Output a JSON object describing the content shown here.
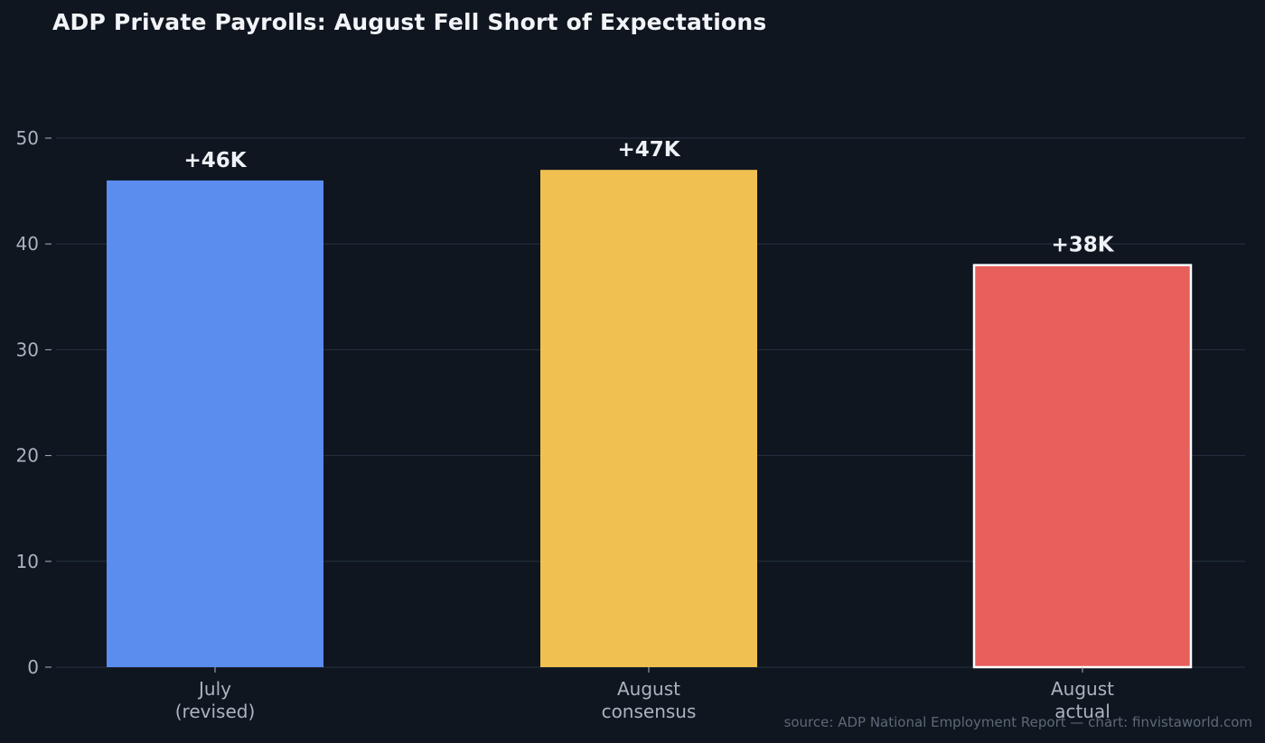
{
  "chart_data": {
    "type": "bar",
    "title": "ADP Private Payrolls: August Fell Short of Expectations",
    "categories": [
      "July\n(revised)",
      "August\nconsensus",
      "August\nactual"
    ],
    "values": [
      46,
      47,
      38
    ],
    "data_labels": [
      "+46K",
      "+47K",
      "+38K"
    ],
    "bar_colors": [
      "#5b8def",
      "#f0c050",
      "#e85f5c"
    ],
    "highlight": [
      false,
      false,
      true
    ],
    "highlight_color": "#ffffff",
    "ylim": [
      0,
      55
    ],
    "yticks": [
      0,
      10,
      20,
      30,
      40,
      50
    ],
    "grid": true,
    "xlabel": "",
    "ylabel": ""
  },
  "colors": {
    "background": "#0f1620",
    "grid": "#263240",
    "tick_text": "#aab3be",
    "label_text": "#eef1f5"
  },
  "footer": {
    "source": "source: ADP National Employment Report — chart: finvistaworld.com"
  }
}
